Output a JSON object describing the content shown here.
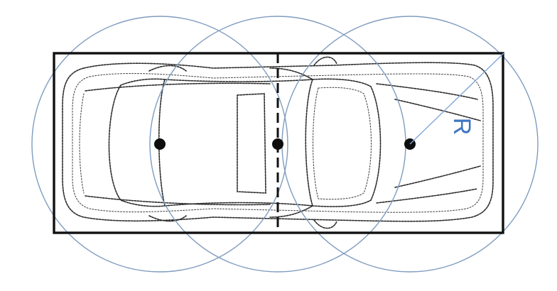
{
  "diagram": {
    "radius_label": "R",
    "circle_count": 3,
    "colors": {
      "circle_stroke": "#7f9cbf",
      "radius_line": "#7fa6d6",
      "radius_label": "#3f74c4",
      "box": "#111111",
      "dots": "#0d0d0d"
    }
  }
}
